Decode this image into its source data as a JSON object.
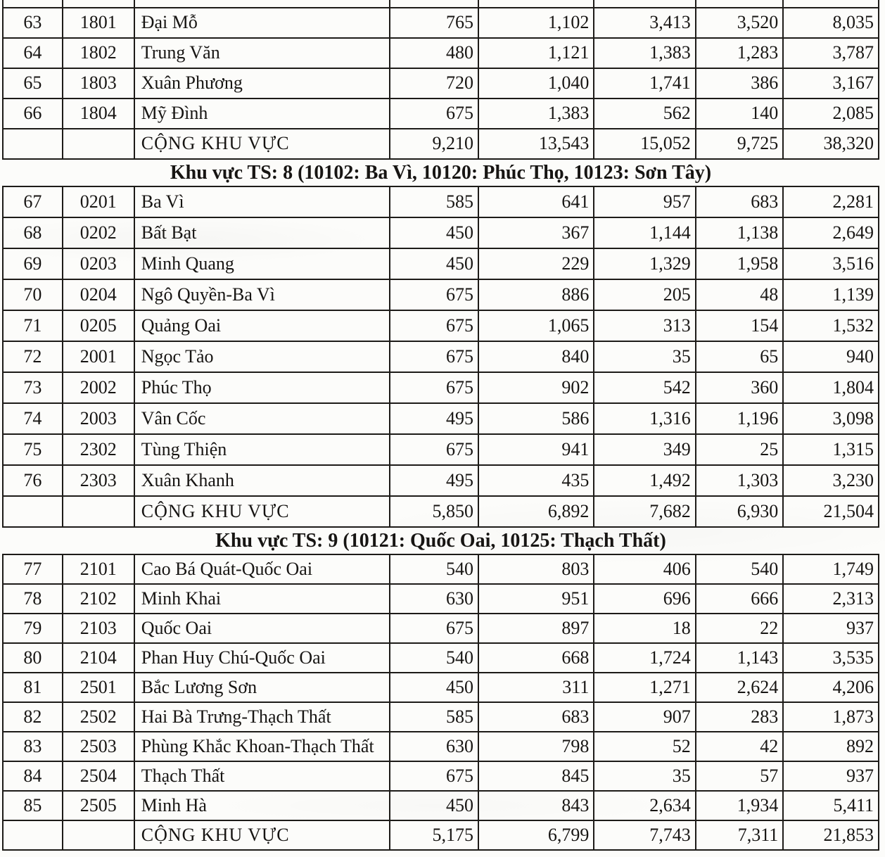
{
  "page": {
    "background": "#fcfcfa",
    "ink": "#171513",
    "line": "#1d1b18"
  },
  "sections": [
    {
      "header": "",
      "clipped_top": true,
      "rows": [
        {
          "stt": "63",
          "code": "1801",
          "name": "Đại Mỗ",
          "values": [
            "765",
            "1,102",
            "3,413",
            "3,520",
            "8,035"
          ]
        },
        {
          "stt": "64",
          "code": "1802",
          "name": "Trung Văn",
          "values": [
            "480",
            "1,121",
            "1,383",
            "1,283",
            "3,787"
          ]
        },
        {
          "stt": "65",
          "code": "1803",
          "name": "Xuân Phương",
          "values": [
            "720",
            "1,040",
            "1,741",
            "386",
            "3,167"
          ]
        },
        {
          "stt": "66",
          "code": "1804",
          "name": "Mỹ Đình",
          "values": [
            "675",
            "1,383",
            "562",
            "140",
            "2,085"
          ]
        }
      ],
      "total_label": "CỘNG KHU VỰC",
      "totals": [
        "9,210",
        "13,543",
        "15,052",
        "9,725",
        "38,320"
      ]
    },
    {
      "header": "Khu vực TS: 8 (10102: Ba Vì, 10120: Phúc Thọ, 10123: Sơn Tây)",
      "clipped_top": false,
      "rows": [
        {
          "stt": "67",
          "code": "0201",
          "name": "Ba Vì",
          "values": [
            "585",
            "641",
            "957",
            "683",
            "2,281"
          ]
        },
        {
          "stt": "68",
          "code": "0202",
          "name": "Bất Bạt",
          "values": [
            "450",
            "367",
            "1,144",
            "1,138",
            "2,649"
          ]
        },
        {
          "stt": "69",
          "code": "0203",
          "name": "Minh Quang",
          "values": [
            "450",
            "229",
            "1,329",
            "1,958",
            "3,516"
          ]
        },
        {
          "stt": "70",
          "code": "0204",
          "name": "Ngô Quyền-Ba Vì",
          "values": [
            "675",
            "886",
            "205",
            "48",
            "1,139"
          ]
        },
        {
          "stt": "71",
          "code": "0205",
          "name": "Quảng Oai",
          "values": [
            "675",
            "1,065",
            "313",
            "154",
            "1,532"
          ]
        },
        {
          "stt": "72",
          "code": "2001",
          "name": "Ngọc Tảo",
          "values": [
            "675",
            "840",
            "35",
            "65",
            "940"
          ]
        },
        {
          "stt": "73",
          "code": "2002",
          "name": "Phúc Thọ",
          "values": [
            "675",
            "902",
            "542",
            "360",
            "1,804"
          ]
        },
        {
          "stt": "74",
          "code": "2003",
          "name": "Vân Cốc",
          "values": [
            "495",
            "586",
            "1,316",
            "1,196",
            "3,098"
          ]
        },
        {
          "stt": "75",
          "code": "2302",
          "name": "Tùng Thiện",
          "values": [
            "675",
            "941",
            "349",
            "25",
            "1,315"
          ]
        },
        {
          "stt": "76",
          "code": "2303",
          "name": "Xuân Khanh",
          "values": [
            "495",
            "435",
            "1,492",
            "1,303",
            "3,230"
          ]
        }
      ],
      "total_label": "CỘNG KHU VỰC",
      "totals": [
        "5,850",
        "6,892",
        "7,682",
        "6,930",
        "21,504"
      ]
    },
    {
      "header": "Khu vực TS: 9 (10121: Quốc Oai, 10125: Thạch Thất)",
      "clipped_top": false,
      "rows": [
        {
          "stt": "77",
          "code": "2101",
          "name": "Cao Bá Quát-Quốc Oai",
          "values": [
            "540",
            "803",
            "406",
            "540",
            "1,749"
          ]
        },
        {
          "stt": "78",
          "code": "2102",
          "name": "Minh Khai",
          "values": [
            "630",
            "951",
            "696",
            "666",
            "2,313"
          ]
        },
        {
          "stt": "79",
          "code": "2103",
          "name": "Quốc Oai",
          "values": [
            "675",
            "897",
            "18",
            "22",
            "937"
          ]
        },
        {
          "stt": "80",
          "code": "2104",
          "name": "Phan Huy Chú-Quốc Oai",
          "values": [
            "540",
            "668",
            "1,724",
            "1,143",
            "3,535"
          ]
        },
        {
          "stt": "81",
          "code": "2501",
          "name": "Bắc Lương Sơn",
          "values": [
            "450",
            "311",
            "1,271",
            "2,624",
            "4,206"
          ]
        },
        {
          "stt": "82",
          "code": "2502",
          "name": "Hai Bà Trưng-Thạch Thất",
          "values": [
            "585",
            "683",
            "907",
            "283",
            "1,873"
          ]
        },
        {
          "stt": "83",
          "code": "2503",
          "name": "Phùng Khắc Khoan-Thạch Thất",
          "values": [
            "630",
            "798",
            "52",
            "42",
            "892"
          ]
        },
        {
          "stt": "84",
          "code": "2504",
          "name": "Thạch Thất",
          "values": [
            "675",
            "845",
            "35",
            "57",
            "937"
          ]
        },
        {
          "stt": "85",
          "code": "2505",
          "name": "Minh Hà",
          "values": [
            "450",
            "843",
            "2,634",
            "1,934",
            "5,411"
          ]
        }
      ],
      "total_label": "CỘNG KHU VỰC",
      "totals": [
        "5,175",
        "6,799",
        "7,743",
        "7,311",
        "21,853"
      ]
    }
  ]
}
